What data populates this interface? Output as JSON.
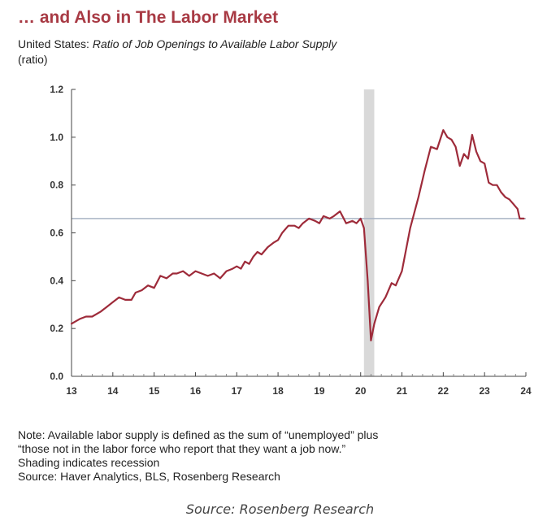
{
  "header": {
    "title": "… and Also in The Labor Market",
    "subtitle_prefix": "United States:",
    "subtitle_italic": "Ratio of Job Openings to Available Labor Supply",
    "unit": "(ratio)"
  },
  "notes": {
    "line1": "Note: Available labor supply is defined as the sum of “unemployed” plus",
    "line2": "“those not in the labor force who report that they want a job now.”",
    "line3": "Shading indicates recession",
    "line4": "Source: Haver Analytics, BLS, Rosenberg Research"
  },
  "caption": "Source: Rosenberg Research",
  "chart_data": {
    "type": "line",
    "title": "… and Also in The Labor Market",
    "subtitle": "United States: Ratio of Job Openings to Available Labor Supply",
    "ylabel": "(ratio)",
    "xlim": [
      2013,
      2024
    ],
    "ylim": [
      0,
      1.2
    ],
    "y_ticks": [
      0.0,
      0.2,
      0.4,
      0.6,
      0.8,
      1.0,
      1.2
    ],
    "y_tick_labels": [
      "0.0",
      "0.2",
      "0.4",
      "0.6",
      "0.8",
      "1.0",
      "1.2"
    ],
    "x_ticks": [
      2013,
      2014,
      2015,
      2016,
      2017,
      2018,
      2019,
      2020,
      2021,
      2022,
      2023,
      2024
    ],
    "x_tick_labels": [
      "13",
      "14",
      "15",
      "16",
      "17",
      "18",
      "19",
      "20",
      "21",
      "22",
      "23",
      "24"
    ],
    "grid": false,
    "reference_line": 0.66,
    "recession": [
      2020.08,
      2020.33
    ],
    "colors": {
      "line": "#9e2b3a",
      "reference": "#aab4c4",
      "recession": "#d9d9d9",
      "title": "#a83a44"
    },
    "series": [
      {
        "x": [
          2013.0,
          2013.1,
          2013.2,
          2013.35,
          2013.5,
          2013.7,
          2013.85,
          2014.0,
          2014.15,
          2014.3,
          2014.45,
          2014.55,
          2014.7,
          2014.85,
          2015.0,
          2015.15,
          2015.3,
          2015.45,
          2015.55,
          2015.7,
          2015.85,
          2016.0,
          2016.15,
          2016.3,
          2016.45,
          2016.6,
          2016.75,
          2016.9,
          2017.0,
          2017.1,
          2017.2,
          2017.3,
          2017.4,
          2017.5,
          2017.6,
          2017.75,
          2017.9,
          2018.0,
          2018.1,
          2018.25,
          2018.4,
          2018.5,
          2018.6,
          2018.75,
          2018.9,
          2019.0,
          2019.1,
          2019.25,
          2019.35,
          2019.5,
          2019.65,
          2019.8,
          2019.9,
          2020.0,
          2020.08,
          2020.17,
          2020.25,
          2020.33,
          2020.45,
          2020.6,
          2020.75,
          2020.85,
          2021.0,
          2021.2,
          2021.4,
          2021.55,
          2021.7,
          2021.85,
          2022.0,
          2022.1,
          2022.2,
          2022.3,
          2022.4,
          2022.5,
          2022.6,
          2022.7,
          2022.8,
          2022.9,
          2023.0,
          2023.1,
          2023.2,
          2023.3,
          2023.4,
          2023.5,
          2023.6,
          2023.7,
          2023.8,
          2023.85,
          2023.95
        ],
        "values": [
          0.22,
          0.23,
          0.24,
          0.25,
          0.25,
          0.27,
          0.29,
          0.31,
          0.33,
          0.32,
          0.32,
          0.35,
          0.36,
          0.38,
          0.37,
          0.42,
          0.41,
          0.43,
          0.43,
          0.44,
          0.42,
          0.44,
          0.43,
          0.42,
          0.43,
          0.41,
          0.44,
          0.45,
          0.46,
          0.45,
          0.48,
          0.47,
          0.5,
          0.52,
          0.51,
          0.54,
          0.56,
          0.57,
          0.6,
          0.63,
          0.63,
          0.62,
          0.64,
          0.66,
          0.65,
          0.64,
          0.67,
          0.66,
          0.67,
          0.69,
          0.64,
          0.65,
          0.64,
          0.66,
          0.62,
          0.4,
          0.15,
          0.22,
          0.29,
          0.33,
          0.39,
          0.38,
          0.44,
          0.62,
          0.75,
          0.86,
          0.96,
          0.95,
          1.03,
          1.0,
          0.99,
          0.96,
          0.88,
          0.93,
          0.91,
          1.01,
          0.94,
          0.9,
          0.89,
          0.81,
          0.8,
          0.8,
          0.77,
          0.75,
          0.74,
          0.72,
          0.7,
          0.66,
          0.66
        ]
      }
    ]
  }
}
